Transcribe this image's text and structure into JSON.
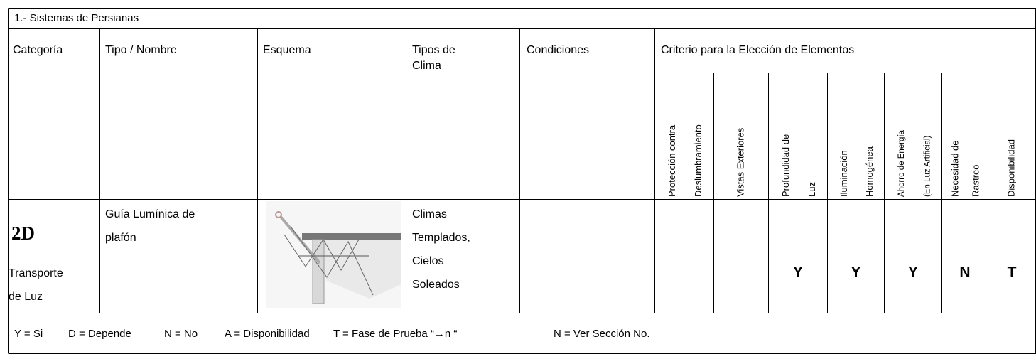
{
  "table": {
    "title": "1.- Sistemas de Persianas",
    "headers": {
      "category": "Categoría",
      "type": "Tipo / Nombre",
      "scheme": "Esquema",
      "climate": [
        "Tipos de",
        "Clima"
      ],
      "conditions": "Condiciones",
      "criteria_title": "Criterio para la Elección de Elementos"
    },
    "criteria": [
      [
        "Protección contra",
        "Deslumbramiento"
      ],
      [
        "Vistas Exteriores"
      ],
      [
        "Profundidad de",
        "Luz"
      ],
      [
        "Iluminación",
        "Homogénea"
      ],
      [
        "Ahorro de Energía",
        "(En Luz Artificial)"
      ],
      [
        "Necesidad de",
        "Rastreo"
      ],
      [
        "Disponibilidad"
      ]
    ],
    "row": {
      "code": "2D",
      "category": [
        "Transporte",
        "de Luz"
      ],
      "type": [
        "Guía Lumínica de",
        "plafón"
      ],
      "climate": [
        "Climas",
        "Templados,",
        "Cielos",
        "Soleados"
      ],
      "ratings": [
        null,
        null,
        "Y",
        "Y",
        "Y",
        "N",
        "T"
      ]
    },
    "legend": [
      "Y = Si",
      "D = Depende",
      "N = No",
      "A = Disponibilidad",
      "T = Fase de Prueba “→n “",
      "N = Ver Sección No."
    ]
  }
}
